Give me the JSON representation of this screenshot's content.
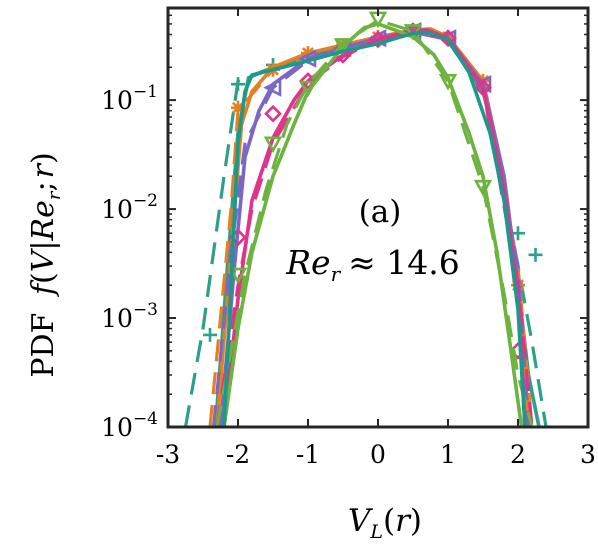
{
  "chart_data": {
    "type": "line",
    "title": "",
    "xlabel": "V_L(r)",
    "ylabel": "PDF f(V|Re_r;r)",
    "ylabel_prefix": "PDF",
    "ylabel_math": "f(V|Re_r;r)",
    "xlabel_math": "V_L(r)",
    "xlim": [
      -3,
      3
    ],
    "ylim": [
      0.0001,
      0.7
    ],
    "yscale": "log",
    "grid": false,
    "legend": "none",
    "xticks": [
      -3,
      -2,
      -1,
      0,
      1,
      2,
      3
    ],
    "xtick_labels": [
      "-3",
      "-2",
      "-1",
      "0",
      "1",
      "2",
      "3"
    ],
    "yticks": [
      0.0001,
      0.001,
      0.01,
      0.1
    ],
    "ytick_labels": [
      {
        "base": "10",
        "exp": "−4"
      },
      {
        "base": "10",
        "exp": "−3"
      },
      {
        "base": "10",
        "exp": "−2"
      },
      {
        "base": "10",
        "exp": "−1"
      }
    ],
    "annotations": [
      "(a)",
      "Re_r ≈ 14.6"
    ],
    "annotation_panel": "(a)",
    "annotation_re": "Re_r ≈ 14.6",
    "series": [
      {
        "color": "#2ca089",
        "marker": "plus",
        "solid_x": [
          -2.32,
          -2.15,
          -2.0,
          -1.85,
          -1.5,
          -1.0,
          -0.5,
          0.0,
          0.5,
          0.7,
          1.0,
          1.5,
          1.8,
          2.0,
          2.15,
          2.3
        ],
        "solid_y": [
          0.0001,
          0.003,
          0.05,
          0.16,
          0.2,
          0.26,
          0.31,
          0.36,
          0.42,
          0.43,
          0.35,
          0.12,
          0.02,
          0.002,
          0.0003,
          0.0001
        ],
        "dashed_x": [
          -2.75,
          -2.5,
          -2.2,
          -2.0,
          -1.5,
          -1.0,
          -0.5,
          0.0,
          0.5,
          1.0,
          1.5,
          2.0,
          2.2,
          2.4
        ],
        "dashed_y": [
          0.0001,
          0.0008,
          0.02,
          0.15,
          0.2,
          0.25,
          0.3,
          0.36,
          0.42,
          0.36,
          0.13,
          0.003,
          0.0006,
          0.0001
        ],
        "marker_x": [
          -2.4,
          -2.0,
          -1.5,
          -1.0,
          -0.5,
          0.0,
          0.5,
          1.0,
          1.5,
          2.0,
          2.25
        ],
        "marker_y": [
          0.0007,
          0.14,
          0.21,
          0.25,
          0.3,
          0.36,
          0.42,
          0.36,
          0.13,
          0.006,
          0.0038
        ]
      },
      {
        "color": "#e67e22",
        "marker": "asterisk",
        "solid_x": [
          -2.3,
          -2.1,
          -1.95,
          -1.8,
          -1.5,
          -1.0,
          -0.5,
          0.0,
          0.5,
          0.75,
          1.0,
          1.5,
          1.8,
          2.0,
          2.15
        ],
        "solid_y": [
          0.0001,
          0.004,
          0.06,
          0.12,
          0.2,
          0.27,
          0.32,
          0.38,
          0.44,
          0.45,
          0.38,
          0.15,
          0.02,
          0.002,
          0.0001
        ],
        "dashed_x": [
          -2.4,
          -2.1,
          -2.0,
          -1.5,
          -1.0,
          -0.5,
          0.0,
          0.5,
          1.0,
          1.5,
          2.0,
          2.2
        ],
        "dashed_y": [
          0.0001,
          0.01,
          0.08,
          0.19,
          0.26,
          0.31,
          0.38,
          0.43,
          0.37,
          0.15,
          0.003,
          0.0001
        ],
        "marker_x": [
          -2.0,
          -1.5,
          -1.0,
          -0.5,
          0.0,
          0.5,
          1.0,
          1.5,
          2.0
        ],
        "marker_y": [
          0.085,
          0.19,
          0.27,
          0.32,
          0.38,
          0.44,
          0.38,
          0.15,
          0.002
        ]
      },
      {
        "color": "#7b68c4",
        "marker": "triangle-left",
        "solid_x": [
          -2.25,
          -2.05,
          -1.9,
          -1.7,
          -1.5,
          -1.0,
          -0.5,
          0.0,
          0.5,
          0.7,
          1.0,
          1.5,
          1.8,
          2.0,
          2.1
        ],
        "solid_y": [
          0.0001,
          0.003,
          0.03,
          0.08,
          0.14,
          0.24,
          0.3,
          0.37,
          0.43,
          0.44,
          0.37,
          0.14,
          0.02,
          0.002,
          0.0001
        ],
        "dashed_x": [
          -2.35,
          -2.1,
          -1.9,
          -1.5,
          -1.0,
          -0.5,
          0.0,
          0.5,
          1.0,
          1.5,
          2.0,
          2.15
        ],
        "dashed_y": [
          0.0001,
          0.004,
          0.04,
          0.13,
          0.23,
          0.3,
          0.37,
          0.42,
          0.36,
          0.14,
          0.003,
          0.0001
        ],
        "marker_x": [
          -1.5,
          -1.0,
          -0.5,
          0.0,
          0.5,
          1.0,
          1.5
        ],
        "marker_y": [
          0.13,
          0.24,
          0.3,
          0.37,
          0.43,
          0.37,
          0.14
        ]
      },
      {
        "color": "#e0338a",
        "marker": "diamond",
        "solid_x": [
          -2.2,
          -2.0,
          -1.8,
          -1.5,
          -1.2,
          -1.0,
          -0.5,
          0.0,
          0.5,
          0.7,
          1.0,
          1.5,
          1.8,
          2.0,
          2.1
        ],
        "solid_y": [
          0.0001,
          0.0015,
          0.012,
          0.045,
          0.1,
          0.15,
          0.26,
          0.36,
          0.43,
          0.44,
          0.37,
          0.13,
          0.015,
          0.0015,
          0.0001
        ],
        "dashed_x": [
          -2.3,
          -2.0,
          -1.8,
          -1.5,
          -1.0,
          -0.5,
          0.0,
          0.5,
          1.0,
          1.5,
          2.0,
          2.2
        ],
        "dashed_y": [
          0.0001,
          0.002,
          0.01,
          0.04,
          0.14,
          0.25,
          0.36,
          0.42,
          0.36,
          0.13,
          0.002,
          0.0001
        ],
        "marker_x": [
          -2.0,
          -1.5,
          -1.0,
          -0.5,
          0.0,
          0.5,
          1.0,
          1.5,
          2.0
        ],
        "marker_y": [
          0.0055,
          0.075,
          0.15,
          0.26,
          0.36,
          0.43,
          0.37,
          0.13,
          0.0005
        ]
      },
      {
        "color": "#6db33f",
        "marker": "triangle-down",
        "solid_x": [
          -2.2,
          -2.0,
          -1.8,
          -1.5,
          -1.2,
          -1.0,
          -0.5,
          -0.2,
          0.0,
          0.2,
          0.5,
          0.8,
          1.0,
          1.3,
          1.5,
          1.7,
          1.9,
          2.05
        ],
        "solid_y": [
          0.0001,
          0.0008,
          0.004,
          0.02,
          0.06,
          0.12,
          0.31,
          0.46,
          0.5,
          0.45,
          0.38,
          0.26,
          0.16,
          0.05,
          0.02,
          0.004,
          0.0005,
          0.0001
        ],
        "dashed_x": [
          -2.3,
          -2.1,
          -1.9,
          -1.6,
          -1.3,
          -1.0,
          -0.5,
          0.0,
          0.5,
          1.0,
          1.5,
          1.8,
          2.0,
          2.2
        ],
        "dashed_y": [
          0.0001,
          0.0005,
          0.0025,
          0.015,
          0.06,
          0.14,
          0.33,
          0.54,
          0.43,
          0.15,
          0.016,
          0.0017,
          0.0003,
          0.0001
        ],
        "marker_x": [
          -2.0,
          -1.5,
          -1.0,
          -0.5,
          0.0,
          0.5,
          1.0,
          1.5
        ],
        "marker_y": [
          0.0025,
          0.04,
          0.13,
          0.32,
          0.56,
          0.43,
          0.15,
          0.016
        ]
      },
      {
        "color": "#1a9a8a",
        "marker": "none",
        "solid_x": [
          -2.2,
          -2.1,
          -2.0,
          -1.9,
          -1.8,
          -1.5,
          -1.0,
          -0.5,
          0.0,
          0.5,
          0.7,
          1.0,
          1.3,
          1.6,
          1.8,
          2.0,
          2.1
        ],
        "solid_y": [
          0.0001,
          0.002,
          0.04,
          0.12,
          0.17,
          0.19,
          0.23,
          0.28,
          0.33,
          0.41,
          0.42,
          0.36,
          0.18,
          0.05,
          0.012,
          0.0012,
          0.0001
        ],
        "dashed_x": [],
        "dashed_y": [],
        "marker_x": [],
        "marker_y": []
      }
    ]
  }
}
